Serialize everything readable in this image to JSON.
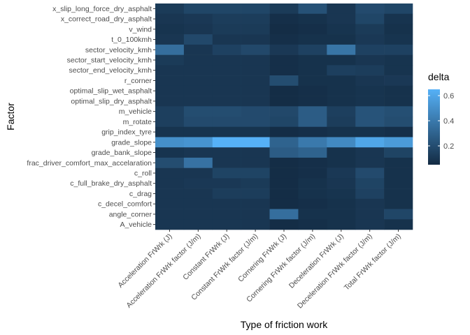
{
  "chart_data": {
    "type": "heatmap",
    "xlabel": "Type of friction work",
    "ylabel": "Factor",
    "x_categories": [
      "Acceleration FrWrk (J)",
      "Acceleration FrWrk factor (J/m)",
      "Constant FrWrk (J)",
      "Constant FrWrk factor (J/m)",
      "Cornering FrWrk (J)",
      "Cornering FrWrk factor (J/m)",
      "Deceleration FrWrk (J)",
      "Deceleration FrWrk factor (J/m)",
      "Total FrWrk factor (J/m)"
    ],
    "y_categories_top_to_bottom": [
      "x_slip_long_force_dry_asphalt",
      "x_correct_road_dry_asphalt",
      "v_wind",
      "t_0_100kmh",
      "sector_velocity_kmh",
      "sector_start_velocity_kmh",
      "sector_end_velocity_kmh",
      "r_corner",
      "optimal_slip_wet_asphalt",
      "optimal_slip_dry_asphalt",
      "m_vehicle",
      "m_rotate",
      "grip_index_tyre",
      "grade_slope",
      "grade_bank_slope",
      "frac_driver_comfort_max_accelaration",
      "c_roll",
      "c_full_brake_dry_asphalt",
      "c_drag",
      "c_decel_comfort",
      "angle_corner",
      "A_vehicle"
    ],
    "values": [
      [
        0.12,
        0.17,
        0.17,
        0.17,
        0.12,
        0.22,
        0.1,
        0.19,
        0.17
      ],
      [
        0.1,
        0.11,
        0.13,
        0.13,
        0.07,
        0.08,
        0.1,
        0.17,
        0.09
      ],
      [
        0.09,
        0.1,
        0.12,
        0.12,
        0.06,
        0.07,
        0.09,
        0.12,
        0.08
      ],
      [
        0.1,
        0.18,
        0.1,
        0.1,
        0.07,
        0.08,
        0.08,
        0.11,
        0.09
      ],
      [
        0.35,
        0.1,
        0.15,
        0.18,
        0.11,
        0.15,
        0.38,
        0.15,
        0.15
      ],
      [
        0.12,
        0.1,
        0.1,
        0.1,
        0.07,
        0.08,
        0.08,
        0.1,
        0.09
      ],
      [
        0.1,
        0.1,
        0.1,
        0.1,
        0.07,
        0.08,
        0.14,
        0.13,
        0.09
      ],
      [
        0.1,
        0.1,
        0.1,
        0.1,
        0.2,
        0.08,
        0.08,
        0.1,
        0.11
      ],
      [
        0.1,
        0.1,
        0.1,
        0.1,
        0.06,
        0.07,
        0.08,
        0.09,
        0.08
      ],
      [
        0.1,
        0.1,
        0.1,
        0.1,
        0.06,
        0.07,
        0.08,
        0.09,
        0.08
      ],
      [
        0.14,
        0.2,
        0.2,
        0.19,
        0.18,
        0.27,
        0.14,
        0.23,
        0.21
      ],
      [
        0.14,
        0.19,
        0.19,
        0.19,
        0.17,
        0.27,
        0.13,
        0.23,
        0.2
      ],
      [
        0.09,
        0.09,
        0.09,
        0.09,
        0.06,
        0.07,
        0.08,
        0.08,
        0.07
      ],
      [
        0.5,
        0.52,
        0.65,
        0.65,
        0.3,
        0.4,
        0.47,
        0.6,
        0.55
      ],
      [
        0.09,
        0.1,
        0.1,
        0.1,
        0.27,
        0.3,
        0.08,
        0.1,
        0.16
      ],
      [
        0.2,
        0.37,
        0.1,
        0.1,
        0.06,
        0.07,
        0.08,
        0.1,
        0.08
      ],
      [
        0.1,
        0.1,
        0.16,
        0.16,
        0.06,
        0.07,
        0.11,
        0.19,
        0.08
      ],
      [
        0.1,
        0.11,
        0.11,
        0.12,
        0.06,
        0.08,
        0.1,
        0.16,
        0.08
      ],
      [
        0.1,
        0.1,
        0.13,
        0.13,
        0.06,
        0.08,
        0.09,
        0.15,
        0.08
      ],
      [
        0.1,
        0.1,
        0.1,
        0.1,
        0.06,
        0.07,
        0.08,
        0.1,
        0.08
      ],
      [
        0.1,
        0.1,
        0.1,
        0.1,
        0.35,
        0.08,
        0.08,
        0.1,
        0.17
      ],
      [
        0.1,
        0.1,
        0.1,
        0.1,
        0.06,
        0.07,
        0.08,
        0.1,
        0.08
      ]
    ],
    "legend": {
      "title": "delta",
      "range": [
        0.05,
        0.65
      ],
      "ticks": [
        0.2,
        0.4,
        0.6
      ],
      "tick_labels": [
        "0.2",
        "0.4",
        "0.6"
      ],
      "color_low": "#132B43",
      "color_high": "#56B1F7"
    },
    "panel_background": "#EBEBEB",
    "grid": true
  }
}
